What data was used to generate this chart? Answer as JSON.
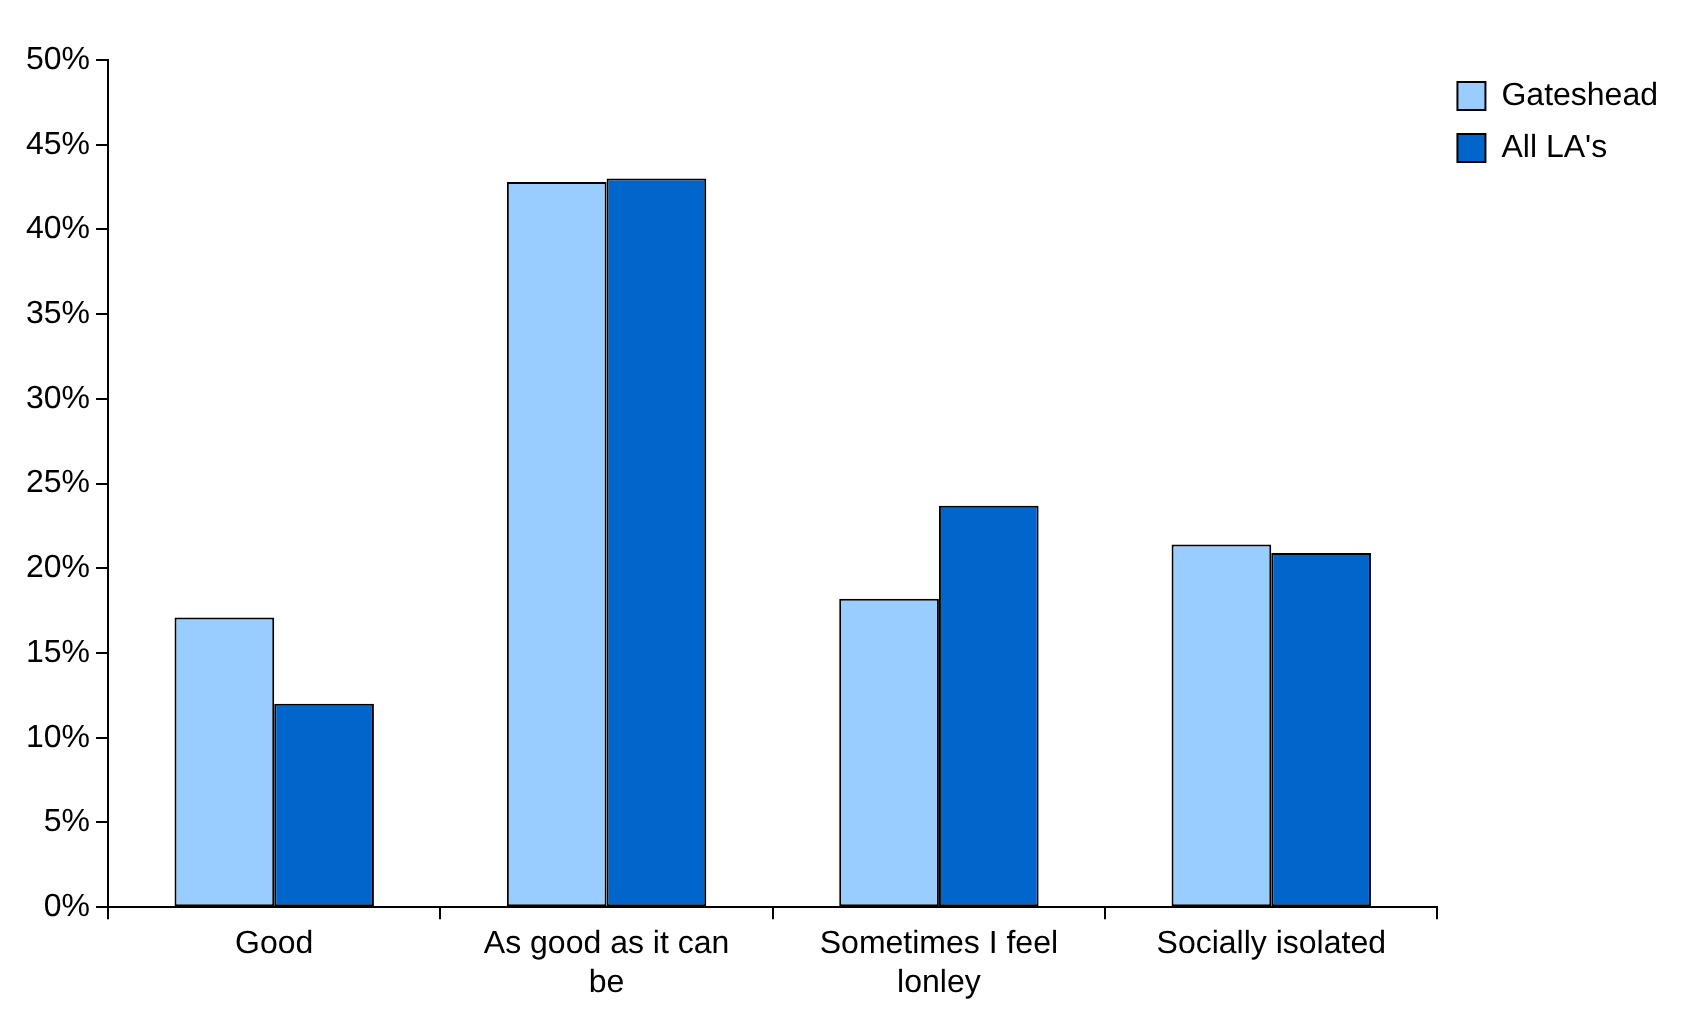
{
  "chart_data": {
    "type": "bar",
    "categories": [
      "Good",
      "As good as it can be",
      "Sometimes I feel lonley",
      "Socially isolated"
    ],
    "series": [
      {
        "name": "Gateshead",
        "color": "#99ccff",
        "values": [
          17.1,
          42.8,
          18.2,
          21.4
        ]
      },
      {
        "name": "All LA's",
        "color": "#0066cc",
        "values": [
          12.0,
          43.0,
          23.7,
          20.9
        ]
      }
    ],
    "ylim": [
      0,
      50
    ],
    "yticks": [
      {
        "value": 0,
        "label": "0%"
      },
      {
        "value": 5,
        "label": "5%"
      },
      {
        "value": 10,
        "label": "10%"
      },
      {
        "value": 15,
        "label": "15%"
      },
      {
        "value": 20,
        "label": "20%"
      },
      {
        "value": 25,
        "label": "25%"
      },
      {
        "value": 30,
        "label": "30%"
      },
      {
        "value": 35,
        "label": "35%"
      },
      {
        "value": 40,
        "label": "40%"
      },
      {
        "value": 45,
        "label": "45%"
      },
      {
        "value": 50,
        "label": "50%"
      }
    ],
    "grid": false,
    "legend": "top right"
  }
}
